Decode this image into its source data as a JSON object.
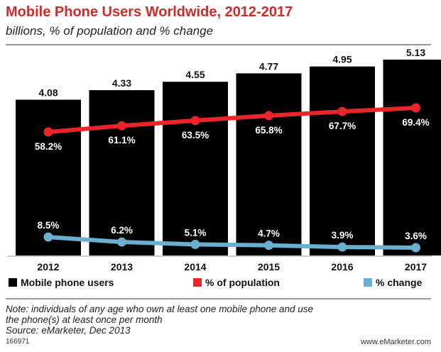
{
  "header": {
    "title": "Mobile Phone Users Worldwide, 2012-2017",
    "subtitle": "billions, % of population and % change"
  },
  "footer": {
    "note_line1": "Note: individuals of any age who own at least one mobile phone and use",
    "note_line2": "the phone(s) at least once per month",
    "source": "Source: eMarketer, Dec 2013",
    "chart_id": "166971",
    "brand": "www.eMarketer.com"
  },
  "colors": {
    "title": "#d22a2a",
    "bars": "#000000",
    "population_line": "#e8262a",
    "change_line": "#6aaed0"
  },
  "chart_data": {
    "type": "bar",
    "categories": [
      "2012",
      "2013",
      "2014",
      "2015",
      "2016",
      "2017"
    ],
    "series": [
      {
        "name": "Mobile phone users",
        "kind": "bar",
        "values": [
          4.08,
          4.33,
          4.55,
          4.77,
          4.95,
          5.13
        ],
        "labels": [
          "4.08",
          "4.33",
          "4.55",
          "4.77",
          "4.95",
          "5.13"
        ]
      },
      {
        "name": "% of population",
        "kind": "line",
        "values": [
          58.2,
          61.1,
          63.5,
          65.8,
          67.7,
          69.4
        ],
        "labels": [
          "58.2%",
          "61.1%",
          "63.5%",
          "65.8%",
          "67.7%",
          "69.4%"
        ]
      },
      {
        "name": "% change",
        "kind": "line",
        "values": [
          8.5,
          6.2,
          5.1,
          4.7,
          3.9,
          3.6
        ],
        "labels": [
          "8.5%",
          "6.2%",
          "5.1%",
          "4.7%",
          "3.9%",
          "3.6%"
        ]
      }
    ],
    "title": "Mobile Phone Users Worldwide, 2012-2017",
    "subtitle": "billions, % of population and % change",
    "legend_position": "bottom",
    "grid": false
  }
}
